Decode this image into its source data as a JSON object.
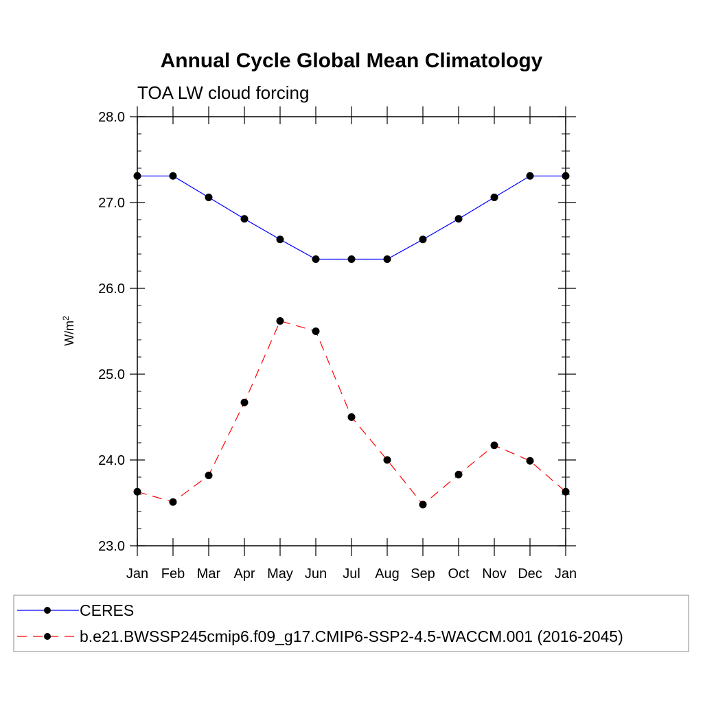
{
  "chart_data": {
    "type": "line",
    "title": "Annual Cycle Global Mean Climatology",
    "subtitle": "TOA LW cloud forcing",
    "ylabel": "W/m",
    "ylabel_superscript": "2",
    "xlabel": "",
    "categories": [
      "Jan",
      "Feb",
      "Mar",
      "Apr",
      "May",
      "Jun",
      "Jul",
      "Aug",
      "Sep",
      "Oct",
      "Nov",
      "Dec",
      "Jan"
    ],
    "ylim": [
      23.0,
      28.0
    ],
    "yticks": [
      "23.0",
      "24.0",
      "25.0",
      "26.0",
      "27.0",
      "28.0"
    ],
    "grid": false,
    "legend_position": "bottom",
    "series": [
      {
        "name": "CERES",
        "color": "#0000ff",
        "line_style": "solid",
        "marker": "filled-circle",
        "values": [
          27.31,
          27.31,
          27.06,
          26.81,
          26.57,
          26.34,
          26.34,
          26.34,
          26.57,
          26.81,
          27.06,
          27.31,
          27.31
        ]
      },
      {
        "name": "b.e21.BWSSP245cmip6.f09_g17.CMIP6-SSP2-4.5-WACCM.001 (2016-2045)",
        "color": "#ff0000",
        "line_style": "dashed",
        "marker": "filled-circle",
        "values": [
          23.63,
          23.51,
          23.82,
          24.67,
          25.62,
          25.5,
          24.5,
          24.0,
          23.48,
          23.83,
          24.17,
          23.99,
          23.63
        ]
      }
    ]
  }
}
